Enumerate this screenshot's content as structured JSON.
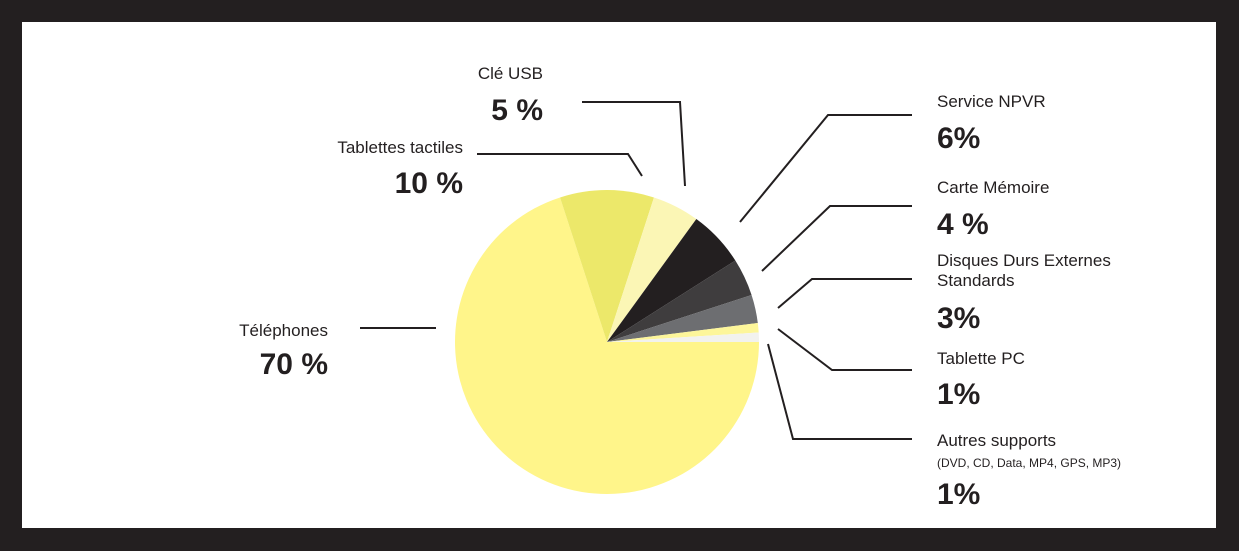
{
  "chart_data": {
    "type": "pie",
    "title": "",
    "slices": [
      {
        "label": "Téléphones",
        "value": 70,
        "value_label": "70 %",
        "color": "#fff58a"
      },
      {
        "label": "Tablettes tactiles",
        "value": 10,
        "value_label": "10 %",
        "color": "#ece86a"
      },
      {
        "label": "Clé USB",
        "value": 5,
        "value_label": "5 %",
        "color": "#fbf6b5"
      },
      {
        "label": "Service NPVR",
        "value": 6,
        "value_label": "6%",
        "color": "#231f20"
      },
      {
        "label": "Carte Mémoire",
        "value": 4,
        "value_label": "4 %",
        "color": "#3f3d3e"
      },
      {
        "label": "Disques Durs Externes Standards",
        "label_lines": [
          "Disques Durs Externes",
          "Standards"
        ],
        "value": 3,
        "value_label": "3%",
        "color": "#6d6e71"
      },
      {
        "label": "Tablette PC",
        "value": 1,
        "value_label": "1%",
        "color": "#fdf69a"
      },
      {
        "label": "Autres supports",
        "sublabel": "(DVD, CD, Data, MP4, GPS, MP3)",
        "value": 1,
        "value_label": "1%",
        "color": "#f2f2ee"
      }
    ]
  }
}
